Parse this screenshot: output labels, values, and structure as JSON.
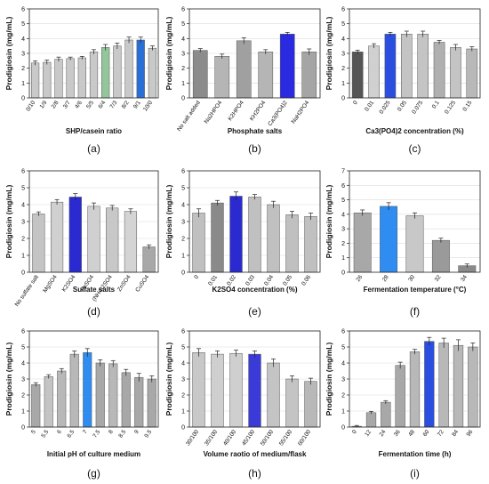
{
  "figure": {
    "y_label": "Prodigiosin (mg/mL)"
  },
  "chart_data": [
    {
      "type": "bar",
      "panel_label": "(a)",
      "xlabel": "SHP/casein ratio",
      "ylabel": "Prodigiosin (mg/mL)",
      "ylim": [
        0,
        6
      ],
      "yticks": [
        0,
        1,
        2,
        3,
        4,
        5,
        6
      ],
      "grid": true,
      "categories": [
        "0/10",
        "1/9",
        "2/8",
        "3/7",
        "4/6",
        "5/5",
        "6/4",
        "7/3",
        "8/2",
        "9/1",
        "10/0"
      ],
      "values": [
        2.35,
        2.4,
        2.6,
        2.65,
        2.7,
        3.1,
        3.4,
        3.5,
        3.9,
        3.9,
        3.35
      ],
      "errors": [
        0.15,
        0.15,
        0.15,
        0.1,
        0.1,
        0.15,
        0.2,
        0.2,
        0.2,
        0.2,
        0.15
      ],
      "colors": [
        "#c9c9c9",
        "#c9c9c9",
        "#c9c9c9",
        "#c9c9c9",
        "#c9c9c9",
        "#c9c9c9",
        "#93c79b",
        "#c9c9c9",
        "#c9c9c9",
        "#2a6fd6",
        "#c9c9c9"
      ]
    },
    {
      "type": "bar",
      "panel_label": "(b)",
      "xlabel": "Phosphate salts",
      "ylabel": "Prodigiosin (mg/mL)",
      "ylim": [
        0,
        6
      ],
      "yticks": [
        0,
        1,
        2,
        3,
        4,
        5,
        6
      ],
      "grid": true,
      "categories": [
        "No salt added",
        "Na2HPO4",
        "K2HPO4",
        "KH2PO4",
        "Ca3(PO4)2",
        "NaH2PO4"
      ],
      "values": [
        3.2,
        2.8,
        3.85,
        3.1,
        4.3,
        3.1
      ],
      "errors": [
        0.12,
        0.15,
        0.2,
        0.15,
        0.12,
        0.2
      ],
      "colors": [
        "#8c8c8c",
        "#b5b5b5",
        "#a0a0a0",
        "#b5b5b5",
        "#2a2ae0",
        "#a5a5a5"
      ]
    },
    {
      "type": "bar",
      "panel_label": "(c)",
      "xlabel": "Ca3(PO4)2 concentration (%)",
      "ylabel": "Prodigiosin (mg/mL)",
      "ylim": [
        0,
        6
      ],
      "yticks": [
        0,
        1,
        2,
        3,
        4,
        5,
        6
      ],
      "grid": true,
      "categories": [
        "0",
        "0.01",
        "0.025",
        "0.05",
        "0.075",
        "0.1",
        "0.125",
        "0.15"
      ],
      "values": [
        3.1,
        3.5,
        4.3,
        4.3,
        4.3,
        3.75,
        3.4,
        3.3
      ],
      "errors": [
        0.12,
        0.15,
        0.12,
        0.2,
        0.2,
        0.12,
        0.2,
        0.15
      ],
      "colors": [
        "#555555",
        "#d0d0d0",
        "#2a4fe0",
        "#c4c4c4",
        "#c4c4c4",
        "#b0b0b0",
        "#c4c4c4",
        "#b8b8b8"
      ]
    },
    {
      "type": "bar",
      "panel_label": "(d)",
      "xlabel": "Sulfate salts",
      "ylabel": "Prodigiosin (mg/mL)",
      "ylim": [
        0,
        6
      ],
      "yticks": [
        0,
        1,
        2,
        3,
        4,
        5,
        6
      ],
      "grid": true,
      "categories": [
        "No sulfate salt",
        "MgSO4",
        "K2SO4",
        "FeSO4",
        "(NH4)2SO4",
        "ZnSO4",
        "CuSO4"
      ],
      "values": [
        3.45,
        4.15,
        4.45,
        3.9,
        3.8,
        3.6,
        1.5
      ],
      "errors": [
        0.12,
        0.15,
        0.2,
        0.2,
        0.15,
        0.15,
        0.12
      ],
      "colors": [
        "#c4c4c4",
        "#d0d0d0",
        "#2a2ad0",
        "#d0d0d0",
        "#c8c8c8",
        "#d4d4d4",
        "#a8a8a8"
      ]
    },
    {
      "type": "bar",
      "panel_label": "(e)",
      "xlabel": "K2SO4 concentration (%)",
      "ylabel": "Prodigiosin (mg/mL)",
      "ylim": [
        0,
        6
      ],
      "yticks": [
        0,
        1,
        2,
        3,
        4,
        5,
        6
      ],
      "grid": true,
      "categories": [
        "0",
        "0.01",
        "0.02",
        "0.03",
        "0.04",
        "0.05",
        "0.06"
      ],
      "values": [
        3.5,
        4.1,
        4.5,
        4.45,
        4.0,
        3.4,
        3.3
      ],
      "errors": [
        0.25,
        0.15,
        0.25,
        0.15,
        0.2,
        0.2,
        0.2
      ],
      "colors": [
        "#c0c0c0",
        "#8a8a8a",
        "#2a2ad0",
        "#c0c0c0",
        "#c0c0c0",
        "#c0c0c0",
        "#c0c0c0"
      ]
    },
    {
      "type": "bar",
      "panel_label": "(f)",
      "xlabel": "Fermentation temperature (°C)",
      "ylabel": "Prodigiosin (mg/mL)",
      "ylim": [
        0,
        7
      ],
      "yticks": [
        0,
        1,
        2,
        3,
        4,
        5,
        6,
        7
      ],
      "grid": true,
      "categories": [
        "26",
        "28",
        "30",
        "32",
        "34"
      ],
      "values": [
        4.1,
        4.55,
        3.9,
        2.2,
        0.45
      ],
      "errors": [
        0.2,
        0.25,
        0.2,
        0.15,
        0.12
      ],
      "colors": [
        "#a8a8a8",
        "#2f8cf0",
        "#c8c8c8",
        "#9a9a9a",
        "#8a8a8a"
      ]
    },
    {
      "type": "bar",
      "panel_label": "(g)",
      "xlabel": "Initial pH of culture medium",
      "ylabel": "Prodigiosin (mg/mL)",
      "ylim": [
        0,
        6
      ],
      "yticks": [
        0,
        1,
        2,
        3,
        4,
        5,
        6
      ],
      "grid": true,
      "categories": [
        "5",
        "5.5",
        "6",
        "6.5",
        "7",
        "7.5",
        "8",
        "8.5",
        "9",
        "9.5"
      ],
      "values": [
        2.65,
        3.15,
        3.5,
        4.55,
        4.65,
        4.0,
        3.95,
        3.4,
        3.1,
        3.0
      ],
      "errors": [
        0.12,
        0.12,
        0.15,
        0.2,
        0.25,
        0.2,
        0.2,
        0.2,
        0.25,
        0.2
      ],
      "colors": [
        "#a8a8a8",
        "#c4c4c4",
        "#b8b8b8",
        "#b8b8b8",
        "#2f8cf0",
        "#a8a8a8",
        "#b8b8b8",
        "#a8a8a8",
        "#a8a8a8",
        "#a8a8a8"
      ]
    },
    {
      "type": "bar",
      "panel_label": "(h)",
      "xlabel": "Volume raotio of medium/flask",
      "ylabel": "Prodigiosin (mg/mL)",
      "ylim": [
        0,
        6
      ],
      "yticks": [
        0,
        1,
        2,
        3,
        4,
        5,
        6
      ],
      "grid": true,
      "categories": [
        "30/100",
        "35/100",
        "40/100",
        "45/100",
        "50/100",
        "55/100",
        "60/100"
      ],
      "values": [
        4.65,
        4.55,
        4.6,
        4.55,
        4.0,
        3.0,
        2.85
      ],
      "errors": [
        0.25,
        0.2,
        0.2,
        0.2,
        0.25,
        0.2,
        0.2
      ],
      "colors": [
        "#c8c8c8",
        "#cfcfcf",
        "#cfcfcf",
        "#3a3ad8",
        "#c4c4c4",
        "#c4c4c4",
        "#b8b8b8"
      ]
    },
    {
      "type": "bar",
      "panel_label": "(i)",
      "xlabel": "Fermentation time (h)",
      "ylabel": "Prodigiosin (mg/mL)",
      "ylim": [
        0,
        6
      ],
      "yticks": [
        0,
        1,
        2,
        3,
        4,
        5,
        6
      ],
      "grid": true,
      "categories": [
        "0",
        "12",
        "24",
        "36",
        "48",
        "60",
        "72",
        "84",
        "96"
      ],
      "values": [
        0.05,
        0.9,
        1.55,
        3.85,
        4.7,
        5.35,
        5.25,
        5.1,
        5.0
      ],
      "errors": [
        0.05,
        0.08,
        0.1,
        0.2,
        0.15,
        0.25,
        0.3,
        0.35,
        0.25
      ],
      "colors": [
        "#a8a8a8",
        "#a8a8a8",
        "#a8a8a8",
        "#a8a8a8",
        "#b8b8b8",
        "#2a4fe0",
        "#b8b8b8",
        "#b8b8b8",
        "#b8b8b8"
      ]
    }
  ]
}
